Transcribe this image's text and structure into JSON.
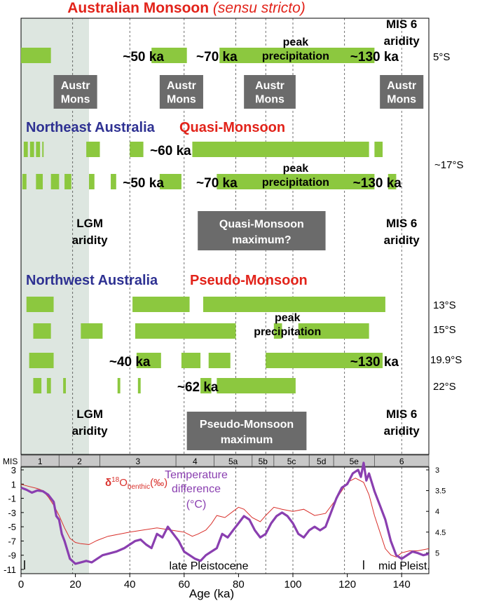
{
  "chart_data": {
    "type": "bar",
    "x_unit": "ka",
    "xlabel": "Age (ka)",
    "xlim": [
      0,
      150
    ],
    "xticks": [
      0,
      20,
      40,
      60,
      80,
      100,
      120,
      140
    ],
    "colors": {
      "bar": "#8cc83f",
      "box": "#6b6b6b",
      "title_red": "#e2231a",
      "title_blue": "#2e3192",
      "lgm": "#dde6e0",
      "benthic": "#d9302b",
      "temp": "#8a3fb0",
      "mis_bar": "#c8c8c8"
    },
    "lgm_band": [
      0,
      25
    ],
    "gridlines": [
      19,
      40,
      60,
      79,
      90,
      100,
      119,
      140
    ],
    "sections": [
      {
        "title": "Australian Monsoon",
        "title_suffix": "(sensu stricto)",
        "rows": [
          {
            "label": "5°S",
            "bars": [
              [
                0,
                11
              ],
              [
                48,
                61
              ],
              [
                73,
                130
              ]
            ]
          }
        ],
        "annotations": [
          {
            "text": "~50 ka",
            "x": 45,
            "row": 0
          },
          {
            "text": "~70 ka",
            "x": 72,
            "row": 0
          },
          {
            "text": "peak",
            "x": 101,
            "row": 0,
            "line": "upper"
          },
          {
            "text": "precipitation",
            "x": 101,
            "row": 0,
            "line": "lower"
          },
          {
            "text": "~130 ka",
            "x": 130,
            "row": 0
          }
        ],
        "boxes": [
          {
            "lines": [
              "Austr",
              "Mons"
            ],
            "from": 12,
            "to": 28
          },
          {
            "lines": [
              "Austr",
              "Mons"
            ],
            "from": 51,
            "to": 67
          },
          {
            "lines": [
              "Austr",
              "Mons"
            ],
            "from": 82,
            "to": 101
          },
          {
            "lines": [
              "Austr",
              "Mons"
            ],
            "from": 132,
            "to": 148
          }
        ],
        "notes": [
          {
            "lines": [
              "MIS 6",
              "aridity"
            ],
            "x": 140
          }
        ]
      },
      {
        "title": "Northeast Australia",
        "title_suffix": "Quasi-Monsoon",
        "row_label": "~17°S",
        "rows": [
          {
            "bars": [
              [
                1,
                2.5
              ],
              [
                3.3,
                4.8
              ],
              [
                5.5,
                7
              ],
              [
                7.8,
                8.3
              ],
              [
                24,
                29
              ],
              [
                40,
                45
              ],
              [
                63,
                128
              ],
              [
                130,
                133
              ]
            ]
          },
          {
            "bars": [
              [
                0.5,
                2
              ],
              [
                5.5,
                8
              ],
              [
                11,
                14
              ],
              [
                16,
                18.5
              ],
              [
                25,
                27
              ],
              [
                33,
                35
              ],
              [
                51,
                59
              ],
              [
                72,
                130
              ],
              [
                135,
                138
              ]
            ]
          }
        ],
        "annotations": [
          {
            "text": "~60 ka",
            "x": 55,
            "row": 0
          },
          {
            "text": "~50 ka",
            "x": 45,
            "row": 1
          },
          {
            "text": "~70 ka",
            "x": 72,
            "row": 1
          },
          {
            "text": "peak",
            "x": 101,
            "row": 1,
            "line": "upper"
          },
          {
            "text": "precipitation",
            "x": 101,
            "row": 1,
            "line": "lower"
          },
          {
            "text": "~130 ka",
            "x": 131,
            "row": 1
          }
        ],
        "boxes": [
          {
            "lines": [
              "Quasi-Monsoon",
              "maximum?"
            ],
            "from": 65,
            "to": 112
          }
        ],
        "notes": [
          {
            "lines": [
              "LGM",
              "aridity"
            ],
            "x": 24
          },
          {
            "lines": [
              "MIS 6",
              "aridity"
            ],
            "x": 140
          }
        ]
      },
      {
        "title": "Northwest Australia",
        "title_suffix": "Pseudo-Monsoon",
        "rows": [
          {
            "label": "13°S",
            "bars": [
              [
                2,
                12
              ],
              [
                41,
                62
              ],
              [
                67,
                134
              ]
            ]
          },
          {
            "label": "15°S",
            "bars": [
              [
                4.5,
                11
              ],
              [
                22,
                30
              ],
              [
                42,
                79
              ],
              [
                93,
                96
              ],
              [
                102,
                128
              ]
            ]
          },
          {
            "label": "19.9°S",
            "bars": [
              [
                3,
                12
              ],
              [
                42.5,
                51.5
              ],
              [
                59,
                66
              ],
              [
                69,
                77
              ],
              [
                90,
                133
              ]
            ]
          },
          {
            "label": "22°S",
            "bars": [
              [
                4.5,
                7.5
              ],
              [
                9.5,
                11
              ],
              [
                15.5,
                16.5
              ],
              [
                35.5,
                36.5
              ],
              [
                43,
                44
              ],
              [
                66,
                70
              ],
              [
                72,
                101
              ]
            ]
          }
        ],
        "annotations": [
          {
            "text": "peak",
            "x": 98,
            "row": 1,
            "line": "upper"
          },
          {
            "text": "precipitation",
            "x": 98,
            "row": 1,
            "line": "lower"
          },
          {
            "text": "~40 ka",
            "x": 40,
            "row": 2
          },
          {
            "text": "~130 ka",
            "x": 130,
            "row": 2
          },
          {
            "text": "~62 ka",
            "x": 65,
            "row": 3
          }
        ],
        "boxes": [
          {
            "lines": [
              "Pseudo-Monsoon",
              "maximum"
            ],
            "from": 61,
            "to": 105
          }
        ],
        "notes": [
          {
            "lines": [
              "LGM",
              "aridity"
            ],
            "x": 24
          },
          {
            "lines": [
              "MIS 6",
              "aridity"
            ],
            "x": 140
          }
        ]
      }
    ],
    "mis": {
      "label": "MIS",
      "stages": [
        {
          "name": "1",
          "from": 0,
          "to": 14
        },
        {
          "name": "2",
          "from": 14,
          "to": 29
        },
        {
          "name": "3",
          "from": 29,
          "to": 57
        },
        {
          "name": "4",
          "from": 57,
          "to": 71
        },
        {
          "name": "5a",
          "from": 71,
          "to": 85
        },
        {
          "name": "5b",
          "from": 85,
          "to": 93
        },
        {
          "name": "5c",
          "from": 93,
          "to": 106
        },
        {
          "name": "5d",
          "from": 106,
          "to": 115
        },
        {
          "name": "5e",
          "from": 115,
          "to": 130
        },
        {
          "name": "6",
          "from": 130,
          "to": 150
        }
      ]
    },
    "lower_panel": {
      "ylim": [
        -11,
        3
      ],
      "yticks": [
        3,
        1,
        -1,
        -3,
        -5,
        -7,
        -9,
        -11
      ],
      "y2lim": [
        5.4,
        3
      ],
      "y2ticks": [
        "3",
        "3.5",
        "4",
        "4.5",
        "5"
      ],
      "benthic_label": "δ18Obenthic(‰)",
      "benthic_parts": [
        "δ",
        "18",
        "O",
        "benthic",
        "(‰)"
      ],
      "temp_label": [
        "Temperature",
        "difference",
        "(°C)"
      ],
      "epochs": [
        "late Pleistocene",
        "mid Pleist."
      ],
      "epoch_divider": 126,
      "series": [
        {
          "name": "δ18Obenthic(‰)",
          "axis": "right",
          "x": [
            0,
            3,
            6,
            8,
            10,
            12,
            14,
            16,
            18,
            20,
            22,
            25,
            28,
            32,
            36,
            40,
            45,
            50,
            55,
            60,
            63,
            65,
            68,
            70,
            72,
            75,
            78,
            80,
            82,
            85,
            88,
            90,
            93,
            96,
            100,
            104,
            108,
            112,
            116,
            120,
            123,
            126,
            128,
            130,
            132,
            134,
            136,
            138,
            140,
            143,
            146,
            150
          ],
          "y": [
            3.35,
            3.4,
            3.45,
            3.5,
            3.65,
            3.85,
            4.1,
            4.4,
            4.65,
            4.75,
            4.78,
            4.8,
            4.7,
            4.6,
            4.55,
            4.5,
            4.45,
            4.4,
            4.45,
            4.5,
            4.6,
            4.55,
            4.45,
            4.3,
            4.1,
            4.15,
            4.0,
            3.9,
            3.95,
            4.15,
            4.25,
            4.1,
            3.9,
            3.95,
            4.0,
            3.95,
            4.1,
            4.05,
            3.7,
            3.3,
            3.2,
            3.3,
            3.6,
            4.1,
            4.5,
            4.9,
            5.05,
            5.1,
            5.0,
            4.95,
            4.95,
            4.9
          ]
        },
        {
          "name": "Temperature difference (°C)",
          "axis": "left",
          "x": [
            0,
            2,
            4,
            6,
            8,
            10,
            12,
            13,
            14,
            15,
            16,
            18,
            20,
            22,
            24,
            26,
            28,
            30,
            32,
            35,
            38,
            40,
            42,
            44,
            46,
            48,
            50,
            52,
            54,
            56,
            58,
            60,
            62,
            64,
            66,
            68,
            70,
            72,
            74,
            76,
            78,
            80,
            82,
            84,
            86,
            88,
            90,
            92,
            94,
            96,
            98,
            100,
            102,
            104,
            106,
            108,
            110,
            112,
            114,
            116,
            118,
            120,
            122,
            124,
            125,
            126,
            127,
            128,
            130,
            132,
            134,
            136,
            138,
            140,
            142,
            144,
            146,
            148,
            150
          ],
          "y": [
            0.5,
            0.2,
            -0.2,
            0.1,
            0.0,
            -0.5,
            -1.5,
            -3.5,
            -4.0,
            -6.0,
            -7.0,
            -9.5,
            -10.2,
            -10.0,
            -9.8,
            -10.0,
            -9.5,
            -9.0,
            -8.8,
            -8.5,
            -8.0,
            -7.5,
            -7.0,
            -6.8,
            -7.5,
            -8.0,
            -6.0,
            -6.5,
            -5.0,
            -6.0,
            -7.0,
            -8.5,
            -9.0,
            -9.5,
            -9.8,
            -9.0,
            -8.5,
            -8.0,
            -6.0,
            -6.5,
            -5.5,
            -4.5,
            -3.5,
            -4.0,
            -5.5,
            -6.5,
            -6.0,
            -4.5,
            -3.5,
            -3.0,
            -3.5,
            -4.5,
            -6.0,
            -6.5,
            -5.5,
            -5.0,
            -5.5,
            -5.0,
            -3.0,
            -1.0,
            0.5,
            1.0,
            2.5,
            3.0,
            2.0,
            4.0,
            1.5,
            2.5,
            0.0,
            -2.0,
            -4.0,
            -7.0,
            -9.0,
            -9.5,
            -9.0,
            -8.5,
            -8.7,
            -9.0,
            -8.8
          ]
        }
      ]
    }
  }
}
